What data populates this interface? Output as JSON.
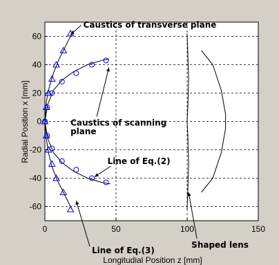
{
  "chart_data": {
    "type": "scatter",
    "title": "",
    "xlabel": "Longitudial Position z [mm]",
    "ylabel": "Radial Position x [mm]",
    "xlim": [
      0,
      150
    ],
    "ylim": [
      -70,
      70
    ],
    "x_ticks": [
      0,
      50,
      100,
      150
    ],
    "y_ticks": [
      -60,
      -40,
      -20,
      0,
      20,
      40,
      60
    ],
    "grid": "dashed",
    "colors": {
      "background": "#d4d0c8",
      "plot_bg": "#ffffff",
      "marker": "#0000ff",
      "line": "#000000",
      "grid": "#000000"
    },
    "series": [
      {
        "marker": "circle",
        "x": [
          0,
          1.5,
          5,
          12,
          22,
          33,
          43,
          1.5,
          5,
          12,
          22,
          33,
          43
        ],
        "y": [
          0,
          10,
          20,
          28,
          34,
          40,
          43,
          -10,
          -19,
          -28,
          -34,
          -40,
          -43
        ]
      },
      {
        "marker": "triangle",
        "x": [
          0,
          1,
          2.5,
          5,
          8,
          13,
          18,
          1,
          2.5,
          5,
          8,
          13,
          18
        ],
        "y": [
          0,
          10,
          20,
          30,
          40,
          50,
          62,
          -10,
          -20,
          -30,
          -40,
          -50,
          -62
        ]
      }
    ],
    "lines": [
      {
        "x": [
          0,
          1,
          3,
          6,
          10,
          15,
          20
        ],
        "y": [
          0,
          14,
          24,
          34,
          44,
          54,
          64
        ]
      },
      {
        "x": [
          0,
          1,
          2.5,
          5,
          9,
          14,
          19
        ],
        "y": [
          0,
          -12,
          -22,
          -32,
          -42,
          -52,
          -62
        ]
      },
      {
        "x": [
          0,
          2,
          6,
          12,
          20,
          30,
          40,
          45
        ],
        "y": [
          0,
          12,
          22,
          29,
          35,
          40,
          43,
          44
        ]
      },
      {
        "x": [
          0,
          2,
          6,
          12,
          20,
          30,
          40,
          46
        ],
        "y": [
          0,
          -12,
          -22,
          -29,
          -35,
          -40,
          -43,
          -44
        ]
      },
      {
        "x": [
          100,
          100.5,
          101,
          100.5,
          100,
          100.5,
          101,
          100.5,
          100
        ],
        "y": [
          -62,
          -48,
          -30,
          -10,
          0,
          10,
          30,
          48,
          62
        ]
      },
      {
        "x": [
          110,
          118,
          124,
          127,
          127,
          124,
          118,
          110
        ],
        "y": [
          50,
          40,
          22,
          5,
          -5,
          -22,
          -40,
          -50
        ]
      }
    ],
    "annotations": [
      {
        "text": "Caustics of transverse plane",
        "x": 27,
        "y": 66,
        "arrow_to": [
          18,
          61
        ]
      },
      {
        "text": "Caustics of scanning",
        "x": 18,
        "y": -3,
        "arrow_to": [
          45,
          38
        ]
      },
      {
        "text": "plane",
        "x": 18,
        "y": -9
      },
      {
        "text": "Line of Eq.(2)",
        "x": 44,
        "y": -30,
        "arrow_to": [
          35,
          -39
        ]
      },
      {
        "text": "Line of Eq.(3)",
        "x": 33,
        "y": -93,
        "arrow_to": [
          22,
          -56
        ]
      },
      {
        "text": "Shaped lens",
        "x": 103,
        "y": -89,
        "arrow_to": [
          101,
          -50
        ]
      }
    ]
  }
}
